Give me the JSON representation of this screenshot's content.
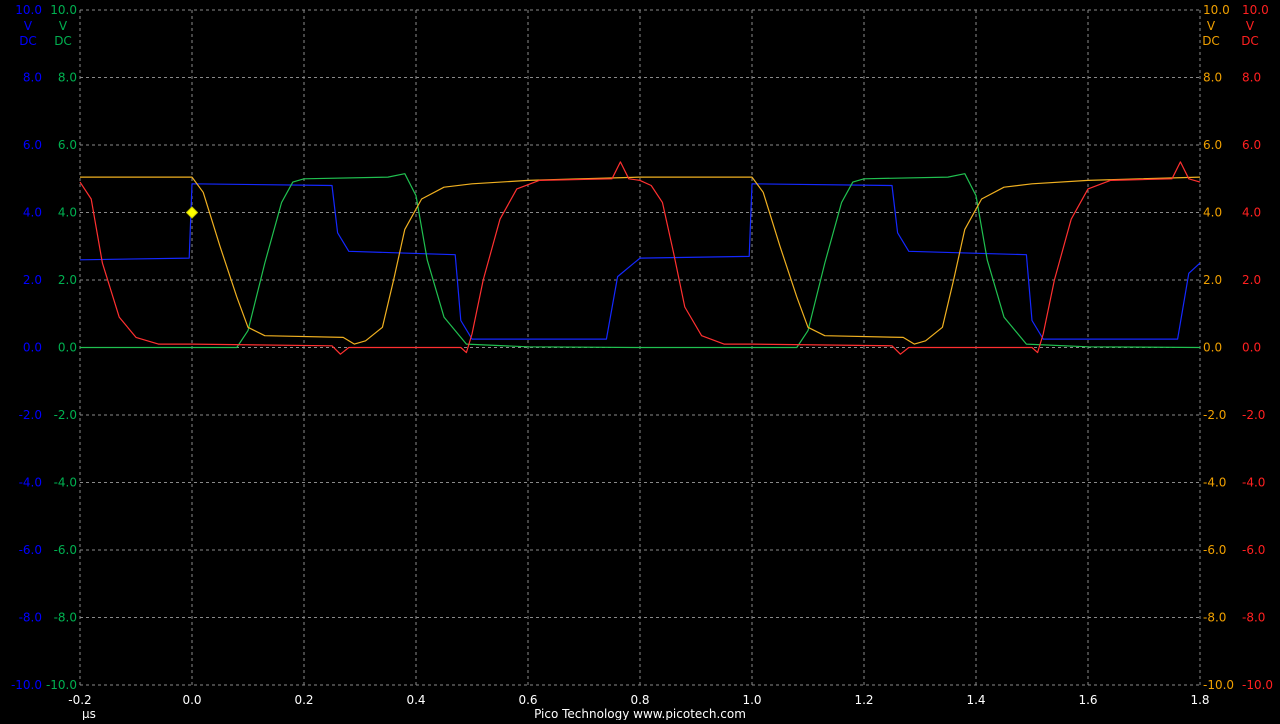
{
  "chart_data": {
    "type": "line",
    "xlim": [
      -0.2,
      1.8
    ],
    "ylim": [
      -10.0,
      10.0
    ],
    "grid": true,
    "x_ticks": [
      "-0.2",
      "0.0",
      "0.2",
      "0.4",
      "0.6",
      "0.8",
      "1.0",
      "1.2",
      "1.4",
      "1.6",
      "1.8"
    ],
    "x_unit": "µs",
    "y_ticks": [
      "10.0",
      "8.0",
      "6.0",
      "4.0",
      "2.0",
      "0.0",
      "-2.0",
      "-4.0",
      "-6.0",
      "-8.0",
      "-10.0"
    ],
    "axes": {
      "left_outer": {
        "color": "#0000ff",
        "lines": [
          "V",
          "DC"
        ]
      },
      "left_inner": {
        "color": "#00b050",
        "lines": [
          "V",
          "DC"
        ]
      },
      "right_inner": {
        "color": "#f0a000",
        "lines": [
          "V",
          "DC"
        ]
      },
      "right_outer": {
        "color": "#ff2020",
        "lines": [
          "V",
          "DC"
        ]
      }
    },
    "footer": "Pico Technology   www.picotech.com",
    "trigger_marker": {
      "x": 0.0,
      "y": 4.0,
      "color": "#ffff00"
    },
    "series": [
      {
        "color": "#1428ff",
        "points": [
          [
            -0.2,
            2.6
          ],
          [
            -0.005,
            2.65
          ],
          [
            0.0,
            4.85
          ],
          [
            0.25,
            4.8
          ],
          [
            0.26,
            3.4
          ],
          [
            0.28,
            2.85
          ],
          [
            0.47,
            2.75
          ],
          [
            0.48,
            0.8
          ],
          [
            0.5,
            0.25
          ],
          [
            0.74,
            0.25
          ],
          [
            0.76,
            2.1
          ],
          [
            0.8,
            2.65
          ],
          [
            0.995,
            2.7
          ],
          [
            1.0,
            4.85
          ],
          [
            1.25,
            4.8
          ],
          [
            1.26,
            3.4
          ],
          [
            1.28,
            2.85
          ],
          [
            1.49,
            2.75
          ],
          [
            1.5,
            0.8
          ],
          [
            1.52,
            0.25
          ],
          [
            1.76,
            0.25
          ],
          [
            1.78,
            2.2
          ],
          [
            1.8,
            2.5
          ]
        ]
      },
      {
        "color": "#20c050",
        "points": [
          [
            -0.2,
            0.0
          ],
          [
            0.08,
            0.0
          ],
          [
            0.1,
            0.5
          ],
          [
            0.13,
            2.5
          ],
          [
            0.16,
            4.3
          ],
          [
            0.18,
            4.9
          ],
          [
            0.2,
            5.0
          ],
          [
            0.35,
            5.05
          ],
          [
            0.38,
            5.15
          ],
          [
            0.4,
            4.5
          ],
          [
            0.42,
            2.6
          ],
          [
            0.45,
            0.9
          ],
          [
            0.49,
            0.1
          ],
          [
            0.6,
            0.02
          ],
          [
            0.8,
            0.0
          ],
          [
            1.08,
            0.0
          ],
          [
            1.1,
            0.5
          ],
          [
            1.13,
            2.5
          ],
          [
            1.16,
            4.3
          ],
          [
            1.18,
            4.9
          ],
          [
            1.2,
            5.0
          ],
          [
            1.35,
            5.05
          ],
          [
            1.38,
            5.15
          ],
          [
            1.4,
            4.5
          ],
          [
            1.42,
            2.6
          ],
          [
            1.45,
            0.9
          ],
          [
            1.49,
            0.1
          ],
          [
            1.6,
            0.02
          ],
          [
            1.8,
            0.0
          ]
        ]
      },
      {
        "color": "#f0b020",
        "points": [
          [
            -0.2,
            5.05
          ],
          [
            0.0,
            5.05
          ],
          [
            0.02,
            4.6
          ],
          [
            0.05,
            3.0
          ],
          [
            0.08,
            1.5
          ],
          [
            0.1,
            0.6
          ],
          [
            0.13,
            0.35
          ],
          [
            0.27,
            0.3
          ],
          [
            0.29,
            0.1
          ],
          [
            0.31,
            0.2
          ],
          [
            0.34,
            0.6
          ],
          [
            0.36,
            2.0
          ],
          [
            0.38,
            3.5
          ],
          [
            0.41,
            4.4
          ],
          [
            0.45,
            4.75
          ],
          [
            0.5,
            4.85
          ],
          [
            0.6,
            4.95
          ],
          [
            0.8,
            5.05
          ],
          [
            1.0,
            5.05
          ],
          [
            1.02,
            4.6
          ],
          [
            1.05,
            3.0
          ],
          [
            1.08,
            1.5
          ],
          [
            1.1,
            0.6
          ],
          [
            1.13,
            0.35
          ],
          [
            1.27,
            0.3
          ],
          [
            1.29,
            0.1
          ],
          [
            1.31,
            0.2
          ],
          [
            1.34,
            0.6
          ],
          [
            1.36,
            2.0
          ],
          [
            1.38,
            3.5
          ],
          [
            1.41,
            4.4
          ],
          [
            1.45,
            4.75
          ],
          [
            1.5,
            4.85
          ],
          [
            1.6,
            4.95
          ],
          [
            1.8,
            5.05
          ]
        ]
      },
      {
        "color": "#ff3030",
        "points": [
          [
            -0.2,
            4.9
          ],
          [
            -0.18,
            4.4
          ],
          [
            -0.16,
            2.5
          ],
          [
            -0.13,
            0.9
          ],
          [
            -0.1,
            0.3
          ],
          [
            -0.06,
            0.1
          ],
          [
            0.0,
            0.1
          ],
          [
            0.25,
            0.05
          ],
          [
            0.265,
            -0.2
          ],
          [
            0.28,
            0.0
          ],
          [
            0.48,
            0.0
          ],
          [
            0.49,
            -0.15
          ],
          [
            0.5,
            0.4
          ],
          [
            0.52,
            2.0
          ],
          [
            0.55,
            3.8
          ],
          [
            0.58,
            4.7
          ],
          [
            0.62,
            4.95
          ],
          [
            0.75,
            5.0
          ],
          [
            0.765,
            5.5
          ],
          [
            0.78,
            5.0
          ],
          [
            0.8,
            4.95
          ],
          [
            0.82,
            4.8
          ],
          [
            0.84,
            4.3
          ],
          [
            0.86,
            2.8
          ],
          [
            0.88,
            1.2
          ],
          [
            0.91,
            0.35
          ],
          [
            0.95,
            0.1
          ],
          [
            1.0,
            0.1
          ],
          [
            1.25,
            0.05
          ],
          [
            1.265,
            -0.2
          ],
          [
            1.28,
            0.0
          ],
          [
            1.5,
            0.0
          ],
          [
            1.51,
            -0.15
          ],
          [
            1.52,
            0.4
          ],
          [
            1.54,
            2.0
          ],
          [
            1.57,
            3.8
          ],
          [
            1.6,
            4.7
          ],
          [
            1.64,
            4.95
          ],
          [
            1.75,
            5.0
          ],
          [
            1.765,
            5.5
          ],
          [
            1.78,
            5.0
          ],
          [
            1.8,
            4.9
          ]
        ]
      }
    ]
  }
}
